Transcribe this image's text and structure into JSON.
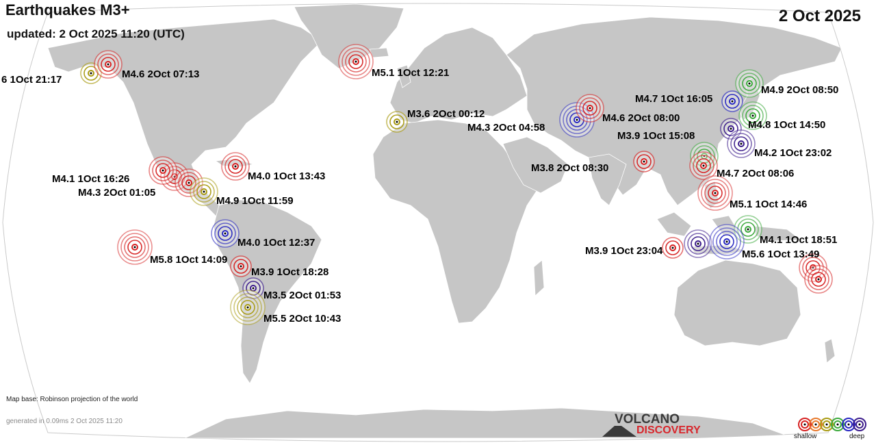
{
  "header": {
    "title": "Earthquakes M3+",
    "updated": "updated:  2 Oct 2025 11:20 (UTC)",
    "date": "2 Oct 2025"
  },
  "footer": {
    "map_base": "Map base: Robinson projection of the world",
    "generated": "generated in 0.09ms  2 Oct 2025 11:20"
  },
  "logo": {
    "line1": "VOLCANO",
    "line2": "DISCOVERY"
  },
  "legend": {
    "shallow_label": "shallow",
    "deep_label": "deep",
    "depth_colors": [
      "#d62020",
      "#e8782a",
      "#a89a10",
      "#3aa83a",
      "#2424c0",
      "#3a1a8a"
    ]
  },
  "colors": {
    "land": "#c6c6c6",
    "ocean": "#ffffff",
    "border": "#ffffff"
  },
  "quakes": [
    {
      "label": "6  1Oct 21:17",
      "depth": "intermediate"
    },
    {
      "label": "M4.6  2Oct 07:13",
      "depth": "shallow"
    },
    {
      "label": "M5.1  1Oct 12:21",
      "depth": "shallow"
    },
    {
      "label": "M3.6  2Oct 00:12",
      "depth": "intermediate"
    },
    {
      "label": "M4.3  2Oct 04:58",
      "depth": "deep"
    },
    {
      "label": "M4.6  2Oct 08:00",
      "depth": "shallow"
    },
    {
      "label": "M4.7  1Oct 16:05",
      "depth": "deep"
    },
    {
      "label": "M4.9  2Oct 08:50",
      "depth": "medium"
    },
    {
      "label": "M4.8  1Oct 14:50",
      "depth": "medium"
    },
    {
      "label": "M3.9  1Oct 15:08",
      "depth": "very-deep"
    },
    {
      "label": "M4.2  1Oct 23:02",
      "depth": "very-deep"
    },
    {
      "label": "M3.8  2Oct 08:30",
      "depth": "shallow"
    },
    {
      "label": "M4.7  2Oct 08:06",
      "depth": "shallow"
    },
    {
      "label": "M5.1  1Oct 14:46",
      "depth": "shallow"
    },
    {
      "label": "M4.1  1Oct 18:51",
      "depth": "medium"
    },
    {
      "label": "M3.9  1Oct 23:04",
      "depth": "shallow"
    },
    {
      "label": "M5.6  1Oct 13:49",
      "depth": "deep"
    },
    {
      "label": "M4.1  1Oct 16:26",
      "depth": "shallow"
    },
    {
      "label": "M4.3  2Oct 01:05",
      "depth": "shallow"
    },
    {
      "label": "M4.0  1Oct 13:43",
      "depth": "shallow"
    },
    {
      "label": "M4.9  1Oct 11:59",
      "depth": "intermediate"
    },
    {
      "label": "M4.0  1Oct 12:37",
      "depth": "deep"
    },
    {
      "label": "M5.8  1Oct 14:09",
      "depth": "shallow"
    },
    {
      "label": "M3.9  1Oct 18:28",
      "depth": "shallow"
    },
    {
      "label": "M3.5  2Oct 01:53",
      "depth": "very-deep"
    },
    {
      "label": "M5.5  2Oct 10:43",
      "depth": "intermediate"
    }
  ]
}
